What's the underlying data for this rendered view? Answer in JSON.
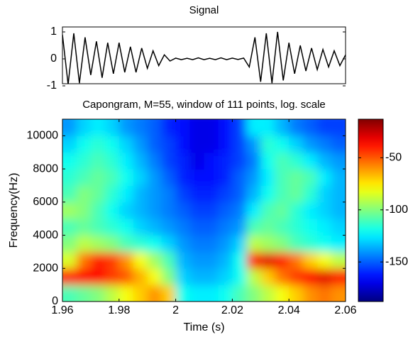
{
  "chart_data": [
    {
      "type": "line",
      "title": "Signal",
      "color": "#000000",
      "xlim": [
        1.96,
        2.06
      ],
      "ylim": [
        -1,
        1
      ],
      "yticks": [
        -1,
        0,
        1
      ],
      "x": [
        1.96,
        1.962,
        1.964,
        1.966,
        1.968,
        1.97,
        1.972,
        1.974,
        1.976,
        1.978,
        1.98,
        1.982,
        1.984,
        1.986,
        1.988,
        1.99,
        1.992,
        1.994,
        1.996,
        1.998,
        2.0,
        2.002,
        2.004,
        2.006,
        2.008,
        2.01,
        2.012,
        2.014,
        2.016,
        2.018,
        2.02,
        2.022,
        2.024,
        2.026,
        2.028,
        2.03,
        2.032,
        2.034,
        2.036,
        2.038,
        2.04,
        2.042,
        2.044,
        2.046,
        2.048,
        2.05,
        2.052,
        2.054,
        2.056,
        2.058,
        2.06
      ],
      "values": [
        0.9,
        -0.95,
        0.95,
        -0.9,
        0.8,
        -0.6,
        0.65,
        -0.7,
        0.6,
        -0.55,
        0.6,
        -0.5,
        0.45,
        -0.5,
        0.4,
        -0.35,
        0.3,
        -0.25,
        0.15,
        -0.08,
        0.03,
        -0.03,
        0.02,
        -0.03,
        0.04,
        -0.03,
        0.02,
        -0.03,
        0.04,
        -0.03,
        0.03,
        -0.02,
        0.03,
        -0.3,
        0.8,
        -0.85,
        0.95,
        -0.9,
        1.0,
        -0.8,
        0.6,
        -0.55,
        0.5,
        -0.45,
        0.4,
        -0.4,
        0.35,
        -0.3,
        0.3,
        -0.25,
        0.15
      ]
    },
    {
      "type": "heatmap",
      "title": "Capongram, M=55, window of 111 points, log. scale",
      "x_label": "Time (s)",
      "y_label": "Frequency(Hz)",
      "colormap": "jet",
      "xlim": [
        1.96,
        2.06
      ],
      "xticks": [
        1.96,
        1.98,
        2,
        2.02,
        2.04,
        2.06
      ],
      "ylim": [
        0,
        11000
      ],
      "yticks": [
        0,
        2000,
        4000,
        6000,
        8000,
        10000
      ],
      "clim": [
        -188,
        -13
      ],
      "cticks": [
        -50,
        -100,
        -150
      ],
      "x": [
        1.9625,
        1.9675,
        1.9725,
        1.9775,
        1.9825,
        1.9875,
        1.9925,
        1.9975,
        2.0025,
        2.0075,
        2.0125,
        2.0175,
        2.0225,
        2.0275,
        2.0325,
        2.0375,
        2.0425,
        2.0475,
        2.0525,
        2.0575
      ],
      "y": [
        500,
        1500,
        2500,
        3500,
        4500,
        5500,
        6500,
        7500,
        8500,
        9500,
        10500
      ],
      "z": [
        [
          -110,
          -105,
          -100,
          -90,
          -80,
          -70,
          -60,
          -70,
          -120,
          -125,
          -125,
          -120,
          -110,
          -100,
          -90,
          -80,
          -70,
          -60,
          -55,
          -60
        ],
        [
          -40,
          -35,
          -35,
          -45,
          -50,
          -65,
          -80,
          -100,
          -130,
          -135,
          -135,
          -130,
          -120,
          -90,
          -70,
          -55,
          -45,
          -35,
          -30,
          -40
        ],
        [
          -85,
          -55,
          -40,
          -45,
          -60,
          -80,
          -95,
          -110,
          -135,
          -140,
          -140,
          -135,
          -120,
          -40,
          -30,
          -40,
          -55,
          -70,
          -80,
          -90
        ],
        [
          -100,
          -90,
          -95,
          -100,
          -110,
          -115,
          -120,
          -130,
          -140,
          -145,
          -145,
          -140,
          -130,
          -90,
          -95,
          -100,
          -110,
          -115,
          -120,
          -125
        ],
        [
          -110,
          -105,
          -110,
          -115,
          -120,
          -130,
          -135,
          -140,
          -145,
          -150,
          -150,
          -145,
          -140,
          -110,
          -105,
          -110,
          -115,
          -120,
          -125,
          -130
        ],
        [
          -95,
          -100,
          -110,
          -120,
          -130,
          -135,
          -140,
          -145,
          -150,
          -155,
          -155,
          -150,
          -145,
          -125,
          -110,
          -105,
          -115,
          -125,
          -130,
          -135
        ],
        [
          -110,
          -100,
          -105,
          -115,
          -125,
          -135,
          -140,
          -145,
          -155,
          -160,
          -160,
          -155,
          -150,
          -135,
          -120,
          -110,
          -105,
          -115,
          -130,
          -135
        ],
        [
          -115,
          -110,
          -105,
          -110,
          -120,
          -130,
          -140,
          -150,
          -160,
          -165,
          -165,
          -160,
          -150,
          -140,
          -125,
          -110,
          -105,
          -110,
          -125,
          -135
        ],
        [
          -120,
          -115,
          -110,
          -115,
          -125,
          -135,
          -145,
          -155,
          -160,
          -170,
          -165,
          -160,
          -155,
          -145,
          -120,
          -110,
          -115,
          -125,
          -135,
          -140
        ],
        [
          -130,
          -120,
          -115,
          -120,
          -130,
          -140,
          -150,
          -155,
          -165,
          -170,
          -170,
          -165,
          -155,
          -140,
          -115,
          -120,
          -130,
          -140,
          -145,
          -150
        ],
        [
          -140,
          -130,
          -125,
          -130,
          -140,
          -145,
          -150,
          -160,
          -165,
          -170,
          -170,
          -165,
          -155,
          -125,
          -125,
          -135,
          -145,
          -150,
          -155,
          -155
        ]
      ]
    }
  ]
}
